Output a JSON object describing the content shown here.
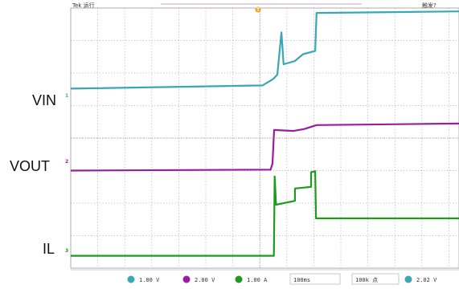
{
  "header": {
    "mode": "Tek 运行",
    "trigger": "触发?"
  },
  "chart_data": {
    "type": "line",
    "title": "",
    "xlabel": "",
    "ylabel": "",
    "xlim": [
      0,
      10
    ],
    "ylim": [
      -4,
      4
    ],
    "grid": true,
    "x_unit": "div",
    "y_unit": "div",
    "series": [
      {
        "name": "VIN",
        "channel": "1",
        "color": "#3aa7b3",
        "points": [
          [
            0,
            1.52
          ],
          [
            7.1,
            1.62
          ],
          [
            7.5,
            1.82
          ],
          [
            7.65,
            1.95
          ],
          [
            7.8,
            3.25
          ],
          [
            7.88,
            2.27
          ],
          [
            8.3,
            2.37
          ],
          [
            8.6,
            2.58
          ],
          [
            9.05,
            2.68
          ],
          [
            9.1,
            3.85
          ],
          [
            14.6,
            3.9
          ]
        ]
      },
      {
        "name": "VOUT",
        "channel": "2",
        "color": "#9b1c9e",
        "points": [
          [
            0,
            -1.0
          ],
          [
            7.4,
            -0.97
          ],
          [
            7.47,
            -0.78
          ],
          [
            7.53,
            0.25
          ],
          [
            8.25,
            0.22
          ],
          [
            8.65,
            0.28
          ],
          [
            9.1,
            0.4
          ],
          [
            14.6,
            0.45
          ]
        ]
      },
      {
        "name": "IL",
        "channel": "3",
        "color": "#1f9a1f",
        "points": [
          [
            0,
            -3.62
          ],
          [
            7.52,
            -3.62
          ],
          [
            7.55,
            -1.18
          ],
          [
            7.6,
            -2.05
          ],
          [
            8.3,
            -1.93
          ],
          [
            8.3,
            -1.55
          ],
          [
            8.9,
            -1.5
          ],
          [
            8.9,
            -1.05
          ],
          [
            9.05,
            -1.02
          ],
          [
            9.08,
            -2.47
          ],
          [
            14.6,
            -2.47
          ]
        ]
      }
    ]
  },
  "labels": {
    "vin": "VIN",
    "vout": "VOUT",
    "il": "IL"
  },
  "channel_markers": {
    "ch1": "1",
    "ch2": "2",
    "ch3": "3",
    "trigger": "T"
  },
  "status_bar": {
    "ch1_scale": "1.00 V",
    "ch2_scale": "2.00 V",
    "ch3_scale": "1.00 A",
    "timebase": "100ms",
    "sample": "100k 点",
    "trigger_level": "2.02 V"
  }
}
